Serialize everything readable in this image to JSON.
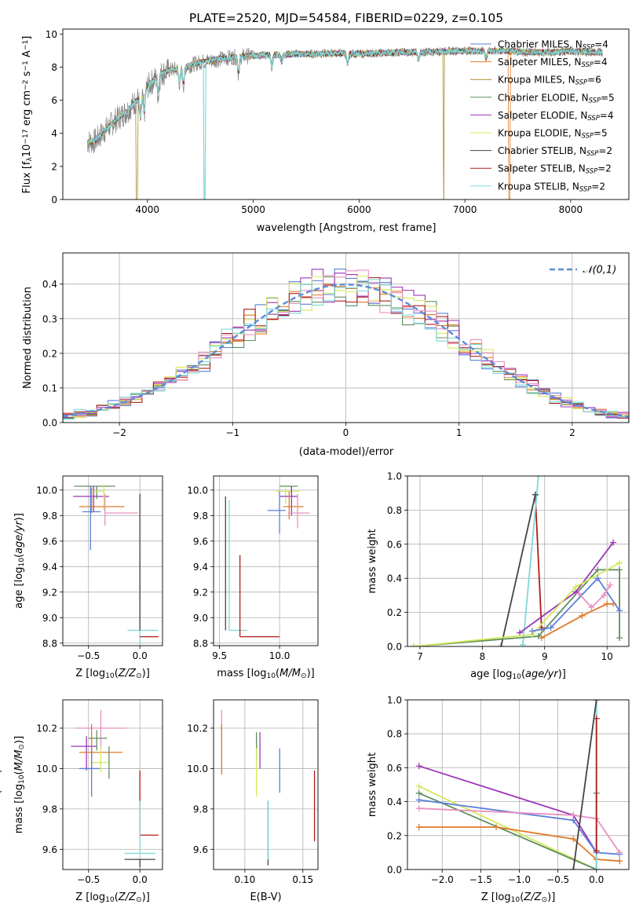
{
  "chart_data": [
    {
      "id": "spectrum",
      "type": "line",
      "title": "PLATE=2520, MJD=54584, FIBERID=0229, z=0.105",
      "xlabel": "wavelength [Angstrom, rest frame]",
      "ylabel": "Flux [f_λ10^-17 erg cm^-2 s^-1 A^-1]",
      "xlim": [
        3200,
        8550
      ],
      "ylim": [
        0,
        10.3
      ],
      "xticks": [
        4000,
        5000,
        6000,
        7000,
        8000
      ],
      "yticks": [
        0,
        2,
        4,
        6,
        8,
        10
      ],
      "legend_position": "right",
      "legend": [
        {
          "text": "Chabrier MILES, N_SSP=4",
          "color": "#5b7fd9"
        },
        {
          "text": "Salpeter MILES, N_SSP=4",
          "color": "#e07b2a"
        },
        {
          "text": "Kroupa MILES, N_SSP=6",
          "color": "#a88a2a"
        },
        {
          "text": "Chabrier ELODIE, N_SSP=5",
          "color": "#5d8f5d"
        },
        {
          "text": "Salpeter ELODIE, N_SSP=4",
          "color": "#9b36b7"
        },
        {
          "text": "Kroupa ELODIE, N_SSP=5",
          "color": "#d4e95a"
        },
        {
          "text": "Chabrier STELIB, N_SSP=2",
          "color": "#444444"
        },
        {
          "text": "Salpeter STELIB, N_SSP=2",
          "color": "#b01c1c"
        },
        {
          "text": "Kroupa STELIB, N_SSP=2",
          "color": "#7fd8d8"
        }
      ],
      "data_color": "#808080",
      "continuum": {
        "x": [
          3430,
          3500,
          3600,
          3700,
          3800,
          3900,
          4000,
          4100,
          4200,
          4300,
          4400,
          4500,
          4600,
          4700,
          4800,
          4900,
          5000,
          5200,
          5400,
          5600,
          5800,
          6000,
          6200,
          6400,
          6600,
          6800,
          7000,
          7200,
          7400,
          7600,
          7800,
          8000,
          8200,
          8300
        ],
        "y": [
          3.5,
          3.5,
          4.2,
          4.8,
          5.3,
          6.0,
          6.8,
          7.5,
          7.8,
          7.9,
          8.1,
          8.3,
          8.4,
          8.5,
          8.6,
          8.65,
          8.7,
          8.75,
          8.8,
          8.8,
          8.85,
          8.8,
          8.85,
          8.9,
          8.9,
          8.95,
          9.0,
          8.95,
          9.0,
          8.9,
          8.9,
          8.95,
          8.9,
          8.9
        ]
      },
      "absorption_lines": [
        {
          "x": 3934,
          "y": 4.8
        },
        {
          "x": 3969,
          "y": 5.2
        },
        {
          "x": 4102,
          "y": 6.3
        },
        {
          "x": 4304,
          "y": 7.0
        },
        {
          "x": 4341,
          "y": 6.9
        },
        {
          "x": 4861,
          "y": 7.6
        },
        {
          "x": 5175,
          "y": 8.0
        },
        {
          "x": 5270,
          "y": 8.3
        },
        {
          "x": 5892,
          "y": 8.1
        },
        {
          "x": 6563,
          "y": 8.4
        },
        {
          "x": 7200,
          "y": 8.5
        }
      ],
      "model_dropouts": [
        {
          "x": 3900,
          "color": "#a88a2a"
        },
        {
          "x": 4540,
          "color": "#7fd8d8"
        },
        {
          "x": 6800,
          "color": "#a88a2a"
        },
        {
          "x": 7420,
          "color": "#e07b2a"
        }
      ]
    },
    {
      "id": "residuals",
      "type": "histogram",
      "xlabel": "(data-model)/error",
      "ylabel": "Normed distribution",
      "xlim": [
        -2.5,
        2.5
      ],
      "ylim": [
        0,
        0.49
      ],
      "xticks": [
        -2,
        -1,
        0,
        1,
        2
      ],
      "yticks": [
        0.0,
        0.1,
        0.2,
        0.3,
        0.4
      ],
      "legend": [
        {
          "text": "𝒩(0,1)",
          "color": "#5b8bd9",
          "style": "dashed"
        }
      ],
      "legend_position": "upper right",
      "bin_width": 0.1,
      "series_colors": [
        "#5b7fd9",
        "#e07b2a",
        "#5d8f5d",
        "#9b36b7",
        "#d4e95a",
        "#b01c1c",
        "#e88fc0",
        "#7fd8d8"
      ]
    },
    {
      "id": "age-vs-Z",
      "type": "errorbar",
      "xlabel": "Z [log10(Z/Z☉)]",
      "ylabel": "age  [log10(age/yr)]",
      "xlim": [
        -0.75,
        0.22
      ],
      "ylim": [
        8.78,
        10.11
      ],
      "xticks": [
        -0.5,
        0.0
      ],
      "yticks": [
        8.8,
        9.0,
        9.2,
        9.4,
        9.6,
        9.8,
        10.0
      ],
      "points": [
        {
          "x": -0.45,
          "y": 9.95,
          "xerr": [
            0.2,
            0.15
          ],
          "yerr": [
            0.12,
            0.08
          ],
          "color": "#9b36b7"
        },
        {
          "x": -0.42,
          "y": 10.03,
          "xerr": [
            0.22,
            0.18
          ],
          "yerr": [
            0.1,
            0.0
          ],
          "color": "#5d8f5d"
        },
        {
          "x": -0.35,
          "y": 9.99,
          "xerr": [
            0.1,
            0.0
          ],
          "yerr": [
            0.15,
            0.05
          ],
          "color": "#d4e95a"
        },
        {
          "x": -0.47,
          "y": 9.87,
          "xerr": [
            0.12,
            0.32
          ],
          "yerr": [
            0.05,
            0.15
          ],
          "color": "#e07b2a"
        },
        {
          "x": -0.48,
          "y": 9.83,
          "xerr": [
            0.08,
            0.1
          ],
          "yerr": [
            0.3,
            0.2
          ],
          "color": "#5b7fd9"
        },
        {
          "x": -0.34,
          "y": 9.82,
          "xerr": [
            0.0,
            0.32
          ],
          "yerr": [
            0.1,
            0.15
          ],
          "color": "#e88fc0"
        },
        {
          "x": 0.0,
          "y": 8.9,
          "xerr": [
            0.12,
            0.18
          ],
          "yerr": [
            0.1,
            0.6
          ],
          "color": "#7fd8d8"
        },
        {
          "x": 0.0,
          "y": 8.9,
          "xerr": [
            0.0,
            0.0
          ],
          "yerr": [
            0.0,
            1.07
          ],
          "color": "#444444"
        },
        {
          "x": 0.0,
          "y": 8.85,
          "xerr": [
            0.0,
            0.18
          ],
          "yerr": [
            0.0,
            0.0
          ],
          "color": "#b01c1c"
        }
      ]
    },
    {
      "id": "age-vs-mass",
      "type": "errorbar",
      "xlabel": "mass [log10(M/M☉)]",
      "ylabel": "",
      "xlim": [
        9.45,
        10.32
      ],
      "ylim": [
        8.78,
        10.11
      ],
      "xticks": [
        9.5,
        10.0
      ],
      "yticks": [
        8.8,
        9.0,
        9.2,
        9.4,
        9.6,
        9.8,
        10.0
      ],
      "points": [
        {
          "x": 10.1,
          "y": 10.03,
          "xerr": [
            0.1,
            0.05
          ],
          "yerr": [
            0.08,
            0.0
          ],
          "color": "#5d8f5d"
        },
        {
          "x": 10.05,
          "y": 9.99,
          "xerr": [
            0.08,
            0.12
          ],
          "yerr": [
            0.1,
            0.04
          ],
          "color": "#d4e95a"
        },
        {
          "x": 10.1,
          "y": 9.95,
          "xerr": [
            0.1,
            0.05
          ],
          "yerr": [
            0.15,
            0.08
          ],
          "color": "#9b36b7"
        },
        {
          "x": 10.08,
          "y": 9.87,
          "xerr": [
            0.05,
            0.12
          ],
          "yerr": [
            0.1,
            0.12
          ],
          "color": "#e07b2a"
        },
        {
          "x": 10.15,
          "y": 9.82,
          "xerr": [
            0.08,
            0.1
          ],
          "yerr": [
            0.12,
            0.15
          ],
          "color": "#e88fc0"
        },
        {
          "x": 10.0,
          "y": 9.84,
          "xerr": [
            0.1,
            0.05
          ],
          "yerr": [
            0.18,
            0.15
          ],
          "color": "#5b7fd9"
        },
        {
          "x": 9.55,
          "y": 8.9,
          "xerr": [
            0.0,
            0.0
          ],
          "yerr": [
            0.0,
            1.05
          ],
          "color": "#444444"
        },
        {
          "x": 9.58,
          "y": 8.9,
          "xerr": [
            0.0,
            0.15
          ],
          "yerr": [
            0.0,
            1.02
          ],
          "color": "#7fd8d8"
        },
        {
          "x": 9.67,
          "y": 8.85,
          "xerr": [
            0.0,
            0.33
          ],
          "yerr": [
            0.0,
            0.64
          ],
          "color": "#b01c1c"
        }
      ]
    },
    {
      "id": "mass-weight-vs-age",
      "type": "line",
      "xlabel": "age  [log10(age/yr)]",
      "ylabel": "mass weight",
      "xlim": [
        6.8,
        10.35
      ],
      "ylim": [
        0,
        1
      ],
      "xticks": [
        7,
        8,
        9,
        10
      ],
      "yticks": [
        0.0,
        0.2,
        0.4,
        0.6,
        0.8,
        1.0
      ],
      "series": [
        {
          "color": "#b01c1c",
          "x": [
            8.85,
            8.95
          ],
          "y": [
            0.89,
            0.11
          ]
        },
        {
          "color": "#7fd8d8",
          "x": [
            8.65,
            8.9
          ],
          "y": [
            0.01,
            1.0
          ]
        },
        {
          "color": "#444444",
          "x": [
            8.3,
            8.85
          ],
          "y": [
            0.0,
            0.89
          ]
        },
        {
          "color": "#5d8f5d",
          "x": [
            6.9,
            8.9,
            9.85,
            10.2,
            10.2
          ],
          "y": [
            0.0,
            0.06,
            0.45,
            0.45,
            0.05
          ]
        },
        {
          "color": "#9b36b7",
          "x": [
            8.6,
            9.5,
            10.1
          ],
          "y": [
            0.08,
            0.32,
            0.61
          ]
        },
        {
          "color": "#d4e95a",
          "x": [
            6.9,
            8.8,
            9.5,
            10.2
          ],
          "y": [
            0.0,
            0.07,
            0.35,
            0.49
          ]
        },
        {
          "color": "#5b7fd9",
          "x": [
            8.8,
            9.1,
            9.85,
            10.2
          ],
          "y": [
            0.09,
            0.11,
            0.4,
            0.21
          ]
        },
        {
          "color": "#e07b2a",
          "x": [
            8.95,
            9.6,
            10.0,
            10.1
          ],
          "y": [
            0.05,
            0.18,
            0.25,
            0.25
          ]
        },
        {
          "color": "#e88fc0",
          "x": [
            9.55,
            9.75,
            9.95,
            10.05
          ],
          "y": [
            0.31,
            0.23,
            0.3,
            0.36
          ]
        }
      ]
    },
    {
      "id": "mass-vs-Z",
      "type": "errorbar",
      "xlabel": "Z [log10(Z/Z☉)]",
      "ylabel": "mass [log10(M/M☉)]",
      "xlim": [
        -0.75,
        0.22
      ],
      "ylim": [
        9.5,
        10.34
      ],
      "xticks": [
        -0.5,
        0.0
      ],
      "yticks": [
        9.6,
        9.8,
        10.0,
        10.2
      ],
      "points": [
        {
          "x": -0.38,
          "y": 10.2,
          "xerr": [
            0.25,
            0.25
          ],
          "yerr": [
            0.1,
            0.09
          ],
          "color": "#e88fc0"
        },
        {
          "x": -0.42,
          "y": 10.15,
          "xerr": [
            0.08,
            0.1
          ],
          "yerr": [
            0.06,
            0.04
          ],
          "color": "#5d8f5d"
        },
        {
          "x": -0.52,
          "y": 10.11,
          "xerr": [
            0.15,
            0.1
          ],
          "yerr": [
            0.12,
            0.05
          ],
          "color": "#9b36b7"
        },
        {
          "x": -0.47,
          "y": 10.08,
          "xerr": [
            0.12,
            0.3
          ],
          "yerr": [
            0.08,
            0.14
          ],
          "color": "#e07b2a"
        },
        {
          "x": -0.38,
          "y": 10.03,
          "xerr": [
            0.1,
            0.08
          ],
          "yerr": [
            0.05,
            0.08
          ],
          "color": "#d4e95a"
        },
        {
          "x": -0.47,
          "y": 10.0,
          "xerr": [
            0.12,
            0.08
          ],
          "yerr": [
            0.14,
            0.11
          ],
          "color": "#5b7fd9"
        },
        {
          "x": -0.3,
          "y": 10.03,
          "xerr": [
            0.0,
            0.0
          ],
          "yerr": [
            0.08,
            0.08
          ],
          "color": "#5d8f5d"
        },
        {
          "x": 0.0,
          "y": 9.67,
          "xerr": [
            0.0,
            0.18
          ],
          "yerr": [
            0.0,
            0.32
          ],
          "color": "#b01c1c"
        },
        {
          "x": 0.0,
          "y": 9.58,
          "xerr": [
            0.15,
            0.15
          ],
          "yerr": [
            0.0,
            0.26
          ],
          "color": "#7fd8d8"
        },
        {
          "x": 0.0,
          "y": 9.55,
          "xerr": [
            0.15,
            0.15
          ],
          "yerr": [
            0.04,
            0.0
          ],
          "color": "#444444"
        }
      ]
    },
    {
      "id": "mass-vs-EBV",
      "type": "errorbar",
      "xlabel": "E(B-V)",
      "ylabel": "",
      "xlim": [
        0.073,
        0.163
      ],
      "ylim": [
        9.5,
        10.34
      ],
      "xticks": [
        0.1,
        0.15
      ],
      "yticks": [
        9.6,
        9.8,
        10.0,
        10.2
      ],
      "points": [
        {
          "x": 0.08,
          "y": 10.21,
          "xerr": [
            0,
            0
          ],
          "yerr": [
            0.08,
            0.08
          ],
          "color": "#e88fc0"
        },
        {
          "x": 0.08,
          "y": 10.1,
          "xerr": [
            0,
            0
          ],
          "yerr": [
            0.13,
            0.12
          ],
          "color": "#e07b2a"
        },
        {
          "x": 0.11,
          "y": 10.11,
          "xerr": [
            0,
            0
          ],
          "yerr": [
            0.07,
            0.07
          ],
          "color": "#5d8f5d"
        },
        {
          "x": 0.11,
          "y": 9.98,
          "xerr": [
            0,
            0
          ],
          "yerr": [
            0.12,
            0.12
          ],
          "color": "#d4e95a"
        },
        {
          "x": 0.113,
          "y": 10.1,
          "xerr": [
            0,
            0
          ],
          "yerr": [
            0.1,
            0.08
          ],
          "color": "#9b36b7"
        },
        {
          "x": 0.12,
          "y": 9.66,
          "xerr": [
            0,
            0
          ],
          "yerr": [
            0.14,
            0.18
          ],
          "color": "#444444"
        },
        {
          "x": 0.12,
          "y": 9.67,
          "xerr": [
            0,
            0
          ],
          "yerr": [
            0.12,
            0.17
          ],
          "color": "#7fd8d8"
        },
        {
          "x": 0.13,
          "y": 10.0,
          "xerr": [
            0,
            0
          ],
          "yerr": [
            0.12,
            0.1
          ],
          "color": "#5b7fd9"
        },
        {
          "x": 0.16,
          "y": 9.82,
          "xerr": [
            0,
            0
          ],
          "yerr": [
            0.18,
            0.17
          ],
          "color": "#b01c1c"
        }
      ]
    },
    {
      "id": "mass-weight-vs-Z",
      "type": "line",
      "xlabel": "Z [log10(Z/Z☉)]",
      "ylabel": "mass weight",
      "xlim": [
        -2.45,
        0.42
      ],
      "ylim": [
        0,
        1
      ],
      "xticks": [
        -2.0,
        -1.5,
        -1.0,
        -0.5,
        0.0
      ],
      "yticks": [
        0.0,
        0.2,
        0.4,
        0.6,
        0.8,
        1.0
      ],
      "series": [
        {
          "color": "#9b36b7",
          "x": [
            -2.3,
            -0.3,
            0.0
          ],
          "y": [
            0.61,
            0.32,
            0.1
          ]
        },
        {
          "color": "#d4e95a",
          "x": [
            -2.3,
            0.0
          ],
          "y": [
            0.49,
            0.0
          ]
        },
        {
          "color": "#5d8f5d",
          "x": [
            -2.3,
            0.0,
            0.0
          ],
          "y": [
            0.45,
            0.0,
            0.45
          ]
        },
        {
          "color": "#5b7fd9",
          "x": [
            -2.3,
            -0.3,
            0.0,
            0.3
          ],
          "y": [
            0.41,
            0.29,
            0.1,
            0.09
          ]
        },
        {
          "color": "#e88fc0",
          "x": [
            -2.3,
            -0.3,
            0.0,
            0.3
          ],
          "y": [
            0.36,
            0.32,
            0.3,
            0.1
          ]
        },
        {
          "color": "#e07b2a",
          "x": [
            -2.3,
            -1.3,
            -0.3,
            0.0,
            0.3
          ],
          "y": [
            0.25,
            0.25,
            0.18,
            0.06,
            0.05
          ]
        },
        {
          "color": "#7fd8d8",
          "x": [
            0.0,
            0.0
          ],
          "y": [
            0.0,
            1.0
          ]
        },
        {
          "color": "#b01c1c",
          "x": [
            0.0,
            0.0
          ],
          "y": [
            0.11,
            0.89
          ]
        },
        {
          "color": "#444444",
          "x": [
            -0.3,
            0.0
          ],
          "y": [
            0.0,
            1.0
          ]
        }
      ]
    }
  ]
}
